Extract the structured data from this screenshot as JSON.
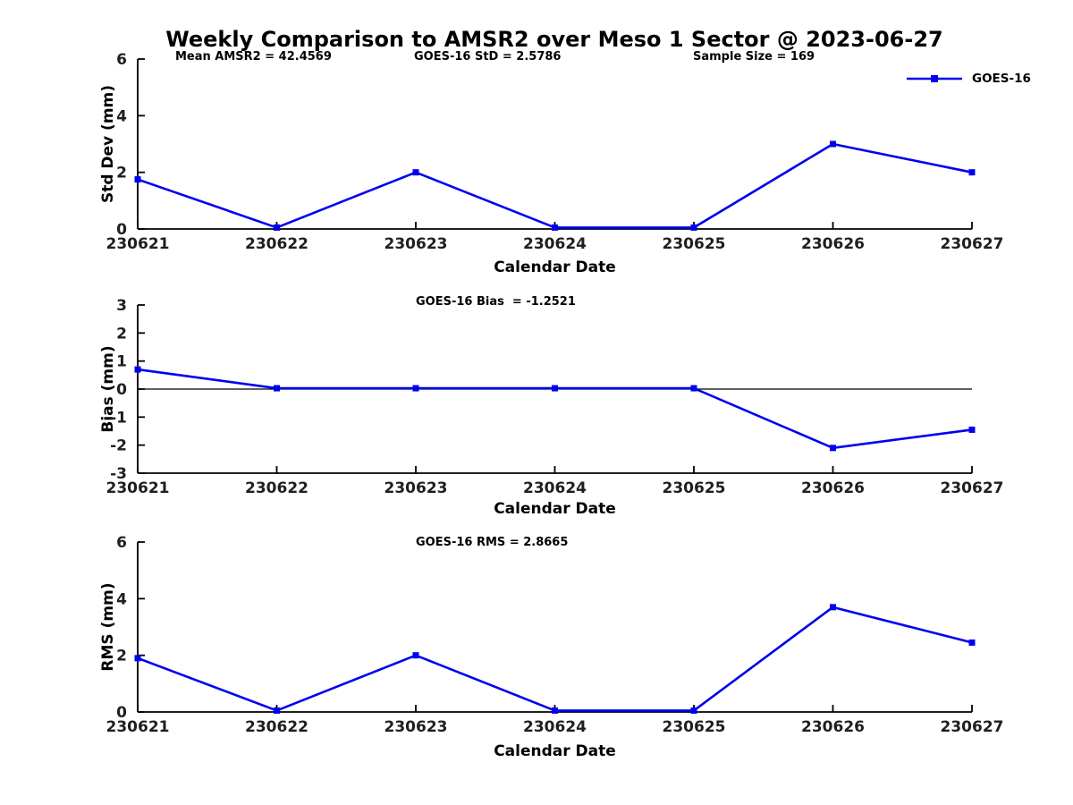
{
  "title": "Weekly Comparison to AMSR2 over Meso 1 Sector @ 2023-06-27",
  "header_annotations": {
    "mean": "Mean AMSR2 = 42.4569",
    "std": "GOES-16 StD = 2.5786",
    "sample": "Sample Size = 169"
  },
  "legend": {
    "label": "GOES-16"
  },
  "colors": {
    "line": "#0000ee",
    "axis": "#000000",
    "text": "#000000",
    "tick_text": "#1f1f1f",
    "background": "#ffffff"
  },
  "chart_data": [
    {
      "type": "line",
      "panel": "std-dev",
      "annotation": "",
      "ylabel": "Std Dev (mm)",
      "xlabel": "Calendar Date",
      "categories": [
        "230621",
        "230622",
        "230623",
        "230624",
        "230625",
        "230626",
        "230627"
      ],
      "series": [
        {
          "name": "GOES-16",
          "values": [
            1.75,
            0.05,
            2.0,
            0.05,
            0.05,
            3.0,
            2.0
          ]
        }
      ],
      "ylim": [
        0,
        6
      ],
      "yticks": [
        0,
        2,
        4,
        6
      ],
      "zero_line": false,
      "grid": false,
      "legend_position": "top-right"
    },
    {
      "type": "line",
      "panel": "bias",
      "annotation": "GOES-16 Bias  = -1.2521",
      "ylabel": "Bias (mm)",
      "xlabel": "Calendar Date",
      "categories": [
        "230621",
        "230622",
        "230623",
        "230624",
        "230625",
        "230626",
        "230627"
      ],
      "series": [
        {
          "name": "GOES-16",
          "values": [
            0.7,
            0.03,
            0.03,
            0.03,
            0.03,
            -2.1,
            -1.45
          ]
        }
      ],
      "ylim": [
        -3,
        3
      ],
      "yticks": [
        -3,
        -2,
        -1,
        0,
        1,
        2,
        3
      ],
      "zero_line": true,
      "grid": false
    },
    {
      "type": "line",
      "panel": "rms",
      "annotation": "GOES-16 RMS = 2.8665",
      "ylabel": "RMS (mm)",
      "xlabel": "Calendar Date",
      "categories": [
        "230621",
        "230622",
        "230623",
        "230624",
        "230625",
        "230626",
        "230627"
      ],
      "series": [
        {
          "name": "GOES-16",
          "values": [
            1.9,
            0.05,
            2.0,
            0.05,
            0.05,
            3.7,
            2.45
          ]
        }
      ],
      "ylim": [
        0,
        6
      ],
      "yticks": [
        0,
        2,
        4,
        6
      ],
      "zero_line": false,
      "grid": false
    }
  ]
}
